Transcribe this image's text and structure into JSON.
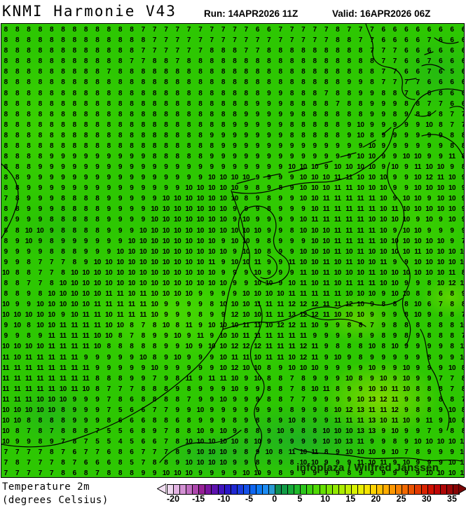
{
  "header": {
    "title": "KNMI Harmonie V43",
    "run_label": "Run: 14APR2026 11Z",
    "valid_label": "Valid: 16APR2026 06Z"
  },
  "watermark": {
    "text": "infoplaza / Wilfred Janssen"
  },
  "legend": {
    "title_line1": "Temperature 2m",
    "title_line2": "(degrees Celsius)",
    "ticks": [
      -20,
      -15,
      -10,
      -5,
      0,
      5,
      10,
      15,
      20,
      25,
      30,
      35
    ],
    "scale_min": -21.25,
    "scale_max": 36.25,
    "segments": [
      "#eed6ee",
      "#e2b3e2",
      "#d391d3",
      "#c16ec1",
      "#ad47ad",
      "#962096",
      "#7a14a0",
      "#5d12ae",
      "#4013bc",
      "#2a17c6",
      "#2028d2",
      "#1a3cde",
      "#1451e8",
      "#0f66f0",
      "#0c7bf4",
      "#1e8cf2",
      "#2b9ad2",
      "#0e8d52",
      "#119b46",
      "#16aa39",
      "#1fb92b",
      "#2cc41d",
      "#3dd00f",
      "#50d905",
      "#65df01",
      "#7ce400",
      "#93e800",
      "#abec00",
      "#c2ee00",
      "#d8f000",
      "#e9ee00",
      "#f6e300",
      "#fdd300",
      "#ffc000",
      "#ffac00",
      "#fc9600",
      "#f78000",
      "#f16900",
      "#ea5200",
      "#e23a00",
      "#d92400",
      "#cf1000",
      "#c00707",
      "#ae0606",
      "#9b0606",
      "#870505"
    ],
    "arrow_left_color": "#f3e0f3",
    "arrow_right_color": "#7a0404"
  },
  "map_colors": {
    "base_green": "#2dc702",
    "light_green": "#46d903",
    "yellow_green": "#a0e000",
    "dark_teal": "#18a53f",
    "number_color": "#000000",
    "coastline_color": "#000000"
  },
  "chart_data": {
    "type": "heatmap",
    "title": "KNMI Harmonie V43",
    "run": "14APR2026 11Z",
    "valid": "16APR2026 06Z",
    "variable": "Temperature 2m",
    "unit": "degrees Celsius",
    "grid_cols": 41,
    "grid_rows": 43,
    "colorbar_range": [
      -20,
      35
    ],
    "values": [
      "8 8 8 8 8 8 8 8 8 8 8 8 7 7 7 7 7 7 7 7 7 7 6 6 7 7 7 7 7 8 7 7 7 6 6 6 6 6 6 6 6",
      "8 8 8 8 8 8 8 8 8 8 8 8 8 7 7 7 7 7 7 7 7 7 7 7 7 7 7 7 7 8 8 7 7 6 6 6 6 7 6 6 6",
      "8 8 8 8 8 8 8 8 8 8 8 8 7 7 7 7 7 7 8 8 8 7 7 8 8 8 8 8 8 8 8 8 7 7 7 6 6 6 6 6 6",
      "8 8 8 8 8 8 8 8 8 8 8 7 7 8 8 7 8 8 8 8 8 8 8 8 8 8 8 8 8 8 8 8 8 7 7 6 6 7 6 6 6",
      "8 8 8 8 8 8 8 8 8 7 8 8 8 8 8 8 8 8 8 8 8 8 8 8 8 8 8 8 8 8 8 8 8 7 7 6 6 7 6 5 6",
      "8 8 8 8 8 8 8 8 8 8 8 8 8 8 8 8 8 8 8 8 8 8 8 8 8 8 8 8 8 8 9 9 8 7 7 7 7 6 6 6 6",
      "8 8 8 8 8 8 8 8 8 8 8 8 8 8 8 8 8 8 8 8 8 8 8 9 9 8 8 8 7 8 8 9 9 8 8 7 6 6 8 6 6",
      "8 8 8 8 8 8 8 8 8 8 8 8 8 8 8 8 8 8 8 8 8 8 9 9 9 8 8 8 8 7 8 8 9 9 9 8 8 7 7 6 6",
      "8 8 8 8 8 8 8 8 8 8 8 8 8 8 8 8 8 8 8 8 8 9 9 9 9 9 8 8 8 8 8 8 9 9 8 9 8 8 8 7 7",
      "8 8 8 8 8 8 8 8 8 8 8 8 8 8 8 8 8 8 8 8 9 9 9 9 9 8 8 8 8 8 9 10 9 9 9 9 9 10 8 7 7",
      "8 8 8 8 8 8 8 8 8 8 8 8 8 8 8 8 8 8 9 9 9 9 9 9 9 8 8 8 8 8 9 10 8 9 9 9 9 9 9 8 8",
      "8 8 8 8 8 8 8 8 8 8 8 8 8 8 8 8 8 8 8 9 9 9 9 9 9 9 9 9 9 9 9 9 10 9 9 9 9 9 9 8 8",
      "8 8 8 8 9 9 9 9 9 9 9 9 9 8 8 8 8 8 9 9 9 9 9 9 9 9 9 9 9 9 9 10 10 9 9 10 10 9 9 11 8",
      "8 8 8 9 9 9 9 9 9 9 9 9 9 9 9 9 9 9 9 9 9 9 9 9 9 10 10 10 9 10 10 10 10 9 10 9 11 10 10 9 8",
      "8 8 9 9 9 9 9 9 9 9 9 9 9 9 9 9 9 9 10 10 10 10 9 9 9 9 10 10 10 11 11 10 10 10 9 9 10 12 11 10 9",
      "8 8 9 9 9 9 9 9 9 9 9 9 9 9 9 9 10 10 10 10 10 9 8 9 8 9 10 10 10 11 11 10 10 10 9 9 10 10 10 10 9",
      "7 8 9 9 9 8 8 8 8 9 9 9 9 9 10 10 10 10 10 10 10 8 9 8 9 9 10 10 11 11 11 11 11 10 9 10 10 9 10 10 9",
      "8 8 9 9 9 8 8 8 8 9 9 9 9 10 10 10 10 10 10 10 9 9 9 8 9 9 9 10 11 11 11 11 11 10 11 10 10 10 10 10 9",
      "8 9 9 9 8 8 8 8 8 9 9 9 9 10 10 10 10 10 10 10 9 10 9 9 9 9 10 11 11 11 11 11 10 10 10 10 9 10 9 10 9",
      "8 8 10 10 9 8 8 8 8 9 9 9 10 10 10 10 10 10 10 10 10 10 10 9 9 8 10 10 10 11 11 11 11 10 9 10 10 9 9 9 9",
      "8 9 10 9 8 9 9 9 9 9 9 10 10 10 10 10 10 10 10 9 10 10 9 8 9 9 9 10 10 11 11 11 11 10 10 10 10 10 10 9 7",
      "9 9 9 9 8 8 8 9 9 9 10 10 10 10 10 10 10 10 10 10 9 10 10 8 9 9 10 10 10 11 10 11 10 10 10 10 11 10 10 10 10",
      "9 9 8 7 7 7 8 9 10 10 10 10 10 10 10 10 10 10 11 9 10 10 11 9 9 11 10 10 11 10 11 10 10 11 9 9 10 10 10 10 10",
      "10 8 8 7 7 8 10 10 10 10 10 10 10 10 10 10 10 10 10 9 9 9 10 9 9 9 11 10 11 10 10 10 11 10 10 10 10 10 10 11 8",
      "8 8 7 7 8 10 10 10 10 10 10 10 10 10 10 10 10 10 10 10 9 9 10 10 9 10 11 10 11 10 11 11 11 10 10 9 9 8 10 12 11",
      "8 8 9 8 10 10 10 10 10 11 11 10 11 10 10 10 10 9 9 9 9 10 10 10 10 11 11 11 11 11 10 10 10 9 10 10 8 8 6 8 9",
      "10 9 9 10 10 10 10 10 11 11 11 11 11 10 9 9 9 9 8 10 10 10 11 11 11 12 12 12 11 11 12 10 9 8 8 8 10 6 7 8 8",
      "10 10 10 10 10 9 10 11 11 10 11 11 11 10 9 9 9 8 9 9 12 10 10 11 11 13 12 12 11 10 10 10 9 9 9 8 10 9 8 8 7",
      "9 10 8 10 10 11 11 11 11 10 10 8 7 8 10 8 11 9 10 10 10 11 11 10 12 12 11 10 9 9 8 8 7 9 8 8 8 8 8 8 10",
      "9 9 8 9 11 11 11 11 10 10 8 7 8 9 9 10 9 11 9 10 10 11 11 11 11 11 11 9 9 9 9 8 9 8 9 8 9 8 8 8 7",
      "10 10 10 10 11 11 11 11 10 8 8 8 8 8 9 9 10 9 10 10 12 12 12 11 11 11 12 11 9 8 8 8 10 8 10 9 9 9 9 8 11",
      "11 10 11 11 11 11 11 9 9 9 9 9 10 8 9 10 9 9 9 10 11 11 10 11 11 10 12 11 9 10 9 8 9 9 9 9 9 8 9 9 10",
      "11 11 11 11 11 11 11 11 9 9 9 9 9 10 9 9 9 9 9 10 12 10 10 8 9 10 10 10 9 9 9 9 10 9 9 10 9 9 9 10 8",
      "11 11 11 11 11 11 11 11 8 8 8 9 9 7 9 8 11 9 11 11 10 9 10 8 8 7 8 9 9 9 10 8 9 10 9 10 9 9 7 7 8",
      "11 11 11 11 11 10 11 10 8 7 7 7 8 8 8 9 8 9 9 9 10 9 9 8 8 7 8 10 11 8 9 9 10 10 11 10 8 8 8 7 8",
      "11 11 11 10 10 10 9 9 9 7 8 6 8 8 8 8 7 9 9 10 9 9 9 8 8 7 7 9 9 9 9 10 13 12 11 9 8 9 8 8 7",
      "10 10 10 10 10 8 9 9 9 7 5 6 6 7 7 9 9 10 9 9 9 9 9 9 9 8 9 9 8 10 12 13 11 11 12 9 8 8 9 10 8",
      "10 10 8 8 8 8 9 9 9 8 6 6 6 8 8 6 8 9 9 9 8 9 8 8 9 10 8 9 9 11 11 11 13 10 11 10 9 11 9 10 8",
      "10 8 7 8 7 8 8 8 7 5 5 6 8 9 7 8 8 10 9 10 9 8 8 9 10 9 8 8 10 10 10 13 13 9 10 9 9 7 9 8 8",
      "10 9 9 8 9 7 8 7 5 5 4 5 6 6 7 8 10 10 10 10 10 8 10 9 9 9 9 9 10 10 13 11 9 9 8 9 10 10 10 10 12",
      "7 7 7 7 8 7 6 7 7 6 8 6 7 7 7 8 9 10 10 10 9 8 9 10 8 11 10 11 8 9 10 10 10 9 10 7 8 9 9 9 10",
      "7 8 7 7 7 8 7 6 6 6 8 5 7 8 8 9 10 10 10 10 9 9 8 8 9 8 10 10 9 9 9 11 10 11 9 10 9 9 9 10 11",
      "7 7 7 7 7 8 6 8 7 8 8 8 9 9 10 10 10 9 9 9 9 10 10 9 8 9 9 9 9 9 8 9 9 9 9 9 9 10 10 10 11"
    ]
  }
}
